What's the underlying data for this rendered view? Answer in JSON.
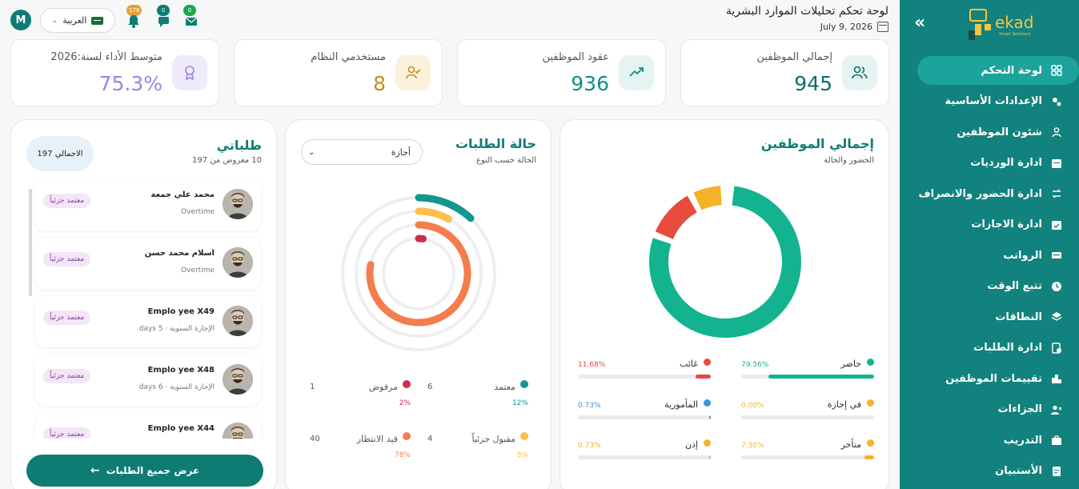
{
  "header": {
    "title": "لوحة تحكم تحليلات الموارد البشرية",
    "date": "July 9, 2026",
    "language": "العربية",
    "user_initial": "M",
    "notifications": [
      {
        "name": "bell",
        "count": "178",
        "color": "#e5a03a"
      },
      {
        "name": "chat",
        "count": "0",
        "color": "#0f7c74"
      },
      {
        "name": "mail",
        "count": "0",
        "color": "#18a84b"
      }
    ]
  },
  "sidebar": {
    "logo": "ekad",
    "logo_sub": "Smart Solutions",
    "items": [
      {
        "label": "لوحة التحكم",
        "icon": "grid-icon"
      },
      {
        "label": "الإعدادات الأساسية",
        "icon": "gears-icon"
      },
      {
        "label": "شئون الموظفين",
        "icon": "user-icon"
      },
      {
        "label": "ادارة الورديات",
        "icon": "calendar-icon"
      },
      {
        "label": "ادارة الحضور والانصراف",
        "icon": "swap-icon"
      },
      {
        "label": "ادارة الاجازات",
        "icon": "calendar-check-icon"
      },
      {
        "label": "الرواتب",
        "icon": "money-icon"
      },
      {
        "label": "تتبع الوقت",
        "icon": "clock-icon"
      },
      {
        "label": "النطاقات",
        "icon": "layers-icon"
      },
      {
        "label": "ادارة الطلبات",
        "icon": "request-icon"
      },
      {
        "label": "تقييمات الموظفين",
        "icon": "ranking-icon"
      },
      {
        "label": "الجزاءات",
        "icon": "user-x-icon"
      },
      {
        "label": "التدريب",
        "icon": "briefcase-icon"
      },
      {
        "label": "الأستبيان",
        "icon": "survey-icon"
      }
    ]
  },
  "kpis": [
    {
      "label": "إجمالي الموظفين",
      "value": "945",
      "color": "#0f6e6a",
      "icon": "users-icon",
      "bg": "#e5f4f2"
    },
    {
      "label": "عقود الموظفين",
      "value": "936",
      "color": "#138d86",
      "icon": "trend-up-icon",
      "bg": "#e5f4f2"
    },
    {
      "label": "مستخدمي النظام",
      "value": "8",
      "color": "#c58d1a",
      "icon": "user-check-icon",
      "bg": "#fbf1dc"
    },
    {
      "label": "متوسط الأداء لسنة:2026",
      "value": "75.3%",
      "color": "#9b84e6",
      "icon": "award-icon",
      "bg": "#efeafc"
    }
  ],
  "employees_panel": {
    "title": "إجمالي الموظفين",
    "subtitle": "الحضور والحالة",
    "chart_data": {
      "type": "pie",
      "categories": [
        "حاضر",
        "غائب",
        "متأخر",
        "المأمورية",
        "إذن",
        "في إجازة"
      ],
      "values": [
        79.56,
        11.68,
        7.3,
        0.73,
        0.73,
        0.0
      ],
      "colors": [
        "#13b38f",
        "#e74c3c",
        "#f6b12b",
        "#3498db",
        "#f6b12b",
        "#f6b12b"
      ]
    },
    "stats": [
      {
        "label": "حاضر",
        "pct": "79.56%",
        "value": 79.56,
        "color": "#13b38f"
      },
      {
        "label": "غائب",
        "pct": "11.68%",
        "value": 11.68,
        "color": "#e74c3c"
      },
      {
        "label": "في إجازة",
        "pct": "0.00%",
        "value": 0.0,
        "color": "#f6b12b"
      },
      {
        "label": "المأمورية",
        "pct": "0.73%",
        "value": 0.73,
        "color": "#3498db"
      },
      {
        "label": "متأخر",
        "pct": "7.30%",
        "value": 7.3,
        "color": "#f6b12b"
      },
      {
        "label": "إذن",
        "pct": "0.73%",
        "value": 0.73,
        "color": "#f6b12b"
      }
    ]
  },
  "requests_panel": {
    "title": "حالة الطلبات",
    "subtitle": "الحالة حسب النوع",
    "filter_value": "أجازة",
    "chart_data": {
      "type": "radial-bar",
      "categories": [
        "معتمد",
        "مقبول جزئيا",
        "قيد الانتظار",
        "مرفوض"
      ],
      "values": [
        12,
        8,
        78,
        2
      ],
      "colors": [
        "#12978f",
        "#ffbd4a",
        "#f47d4f",
        "#cf2b4c"
      ]
    },
    "legend": [
      {
        "label": "معتمد",
        "count": "6",
        "pct": "12%",
        "color": "#12978f"
      },
      {
        "label": "مرفوض",
        "count": "1",
        "pct": "2%",
        "color": "#cf2b4c"
      },
      {
        "label": "مقبول جزئياً",
        "count": "4",
        "pct": "8%",
        "color": "#ffbd4a"
      },
      {
        "label": "قيد الانتظار",
        "count": "40",
        "pct": "78%",
        "color": "#f47d4f"
      }
    ]
  },
  "my_requests": {
    "title": "طلباتي",
    "subtitle": "10 معروض من 197",
    "total": "197 الاجمالي",
    "view_all": "عرض جميع الطلبات",
    "items": [
      {
        "name": "محمد علي جمعة",
        "type": "Overtime",
        "status": "معتمد جزئياً"
      },
      {
        "name": "اسلام محمد حسن",
        "type": "Overtime",
        "status": "معتمد جزئياً"
      },
      {
        "name": "Emplo yee X49",
        "type": "الإجازة السنوية · 5 days",
        "status": "معتمد جزئياً"
      },
      {
        "name": "Emplo yee X48",
        "type": "الإجازة السنوية · 6 days",
        "status": "معتمد جزئياً"
      },
      {
        "name": "Emplo yee X44",
        "type": "",
        "status": "معتمد جزئياً"
      }
    ]
  }
}
